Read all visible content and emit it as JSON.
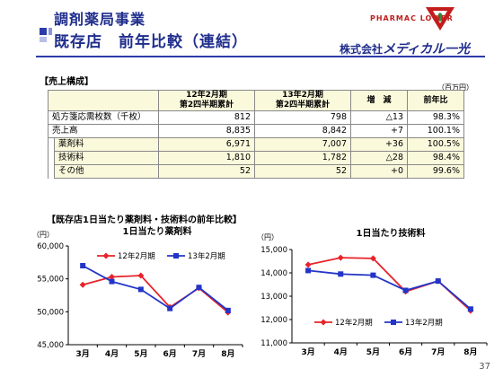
{
  "header": {
    "title_line1": "調剤薬局事業",
    "title_line2": "既存店　前年比較（連結）"
  },
  "logo": {
    "brand_text": "PHARMAC LOWER",
    "company_prefix": "株式会社",
    "company_name": "メディカル一光",
    "brand_color": "#c21c1c"
  },
  "sales_section": {
    "label": "【売上構成】",
    "unit": "（百万円）",
    "columns": [
      "",
      "12年2月期\n第2四半期累計",
      "13年2月期\n第2四半期累計",
      "増　減",
      "前年比"
    ],
    "rows": [
      {
        "label": "処方箋応需枚数（千枚）",
        "prev": "812",
        "curr": "798",
        "diff": "△13",
        "ratio": "98.3%",
        "sub": false
      },
      {
        "label": "売上高",
        "prev": "8,835",
        "curr": "8,842",
        "diff": "+7",
        "ratio": "100.1%",
        "sub": false
      },
      {
        "label": "薬剤料",
        "prev": "6,971",
        "curr": "7,007",
        "diff": "+36",
        "ratio": "100.5%",
        "sub": true
      },
      {
        "label": "技術料",
        "prev": "1,810",
        "curr": "1,782",
        "diff": "△28",
        "ratio": "98.4%",
        "sub": true
      },
      {
        "label": "その他",
        "prev": "52",
        "curr": "52",
        "diff": "+0",
        "ratio": "99.6%",
        "sub": true
      }
    ]
  },
  "chart_section": {
    "label": "【既存店1日当たり薬剤料・技術料の前年比較】"
  },
  "chart_data": [
    {
      "type": "line",
      "title": "1日当たり薬剤料",
      "ylabel": "（円）",
      "categories": [
        "3月",
        "4月",
        "5月",
        "6月",
        "7月",
        "8月"
      ],
      "ylim": [
        45000,
        60000
      ],
      "yticks": [
        45000,
        50000,
        55000,
        60000
      ],
      "ytick_labels": [
        "45,000",
        "50,000",
        "55,000",
        "60,000"
      ],
      "legend_position": "top",
      "series": [
        {
          "name": "12年2月期",
          "color": "#e8232a",
          "marker": "diamond",
          "values": [
            54100,
            55300,
            55500,
            50700,
            53600,
            49900
          ]
        },
        {
          "name": "13年2月期",
          "color": "#2335c8",
          "marker": "square",
          "values": [
            57000,
            54600,
            53400,
            50500,
            53700,
            50200
          ]
        }
      ]
    },
    {
      "type": "line",
      "title": "1日当たり技術料",
      "ylabel": "（円）",
      "categories": [
        "3月",
        "4月",
        "5月",
        "6月",
        "7月",
        "8月"
      ],
      "ylim": [
        11000,
        15000
      ],
      "yticks": [
        11000,
        12000,
        13000,
        14000,
        15000
      ],
      "ytick_labels": [
        "11,000",
        "12,000",
        "13,000",
        "14,000",
        "15,000"
      ],
      "legend_position": "bottom",
      "series": [
        {
          "name": "12年2月期",
          "color": "#e8232a",
          "marker": "diamond",
          "values": [
            14350,
            14650,
            14620,
            13200,
            13650,
            12380
          ]
        },
        {
          "name": "13年2月期",
          "color": "#2335c8",
          "marker": "square",
          "values": [
            14100,
            13950,
            13900,
            13250,
            13650,
            12450
          ]
        }
      ]
    }
  ],
  "page_number": "37"
}
